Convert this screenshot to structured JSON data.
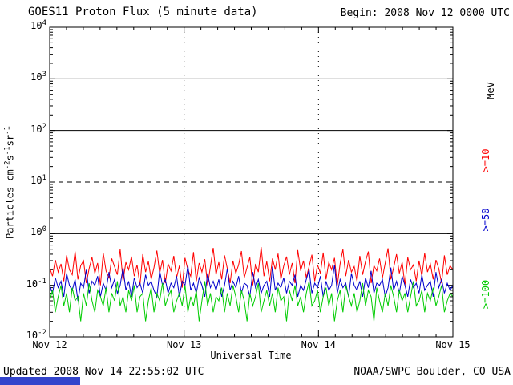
{
  "header": {
    "title": "GOES11 Proton Flux (5 minute data)",
    "begin_label": "Begin: 2008 Nov 12 0000 UTC"
  },
  "footer": {
    "updated": "Updated 2008 Nov 14 22:55:02 UTC",
    "source": "NOAA/SWPC Boulder, CO USA"
  },
  "decor": {
    "bottom_bar_color": "#3344cc"
  },
  "chart_data": {
    "type": "line",
    "title": "GOES11 Proton Flux (5 minute data)",
    "xlabel": "Universal Time",
    "ylabel": "Particles cm-2s-1sr-1",
    "ylabel_parts": [
      {
        "t": "Particles cm"
      },
      {
        "sup": "-2"
      },
      {
        "t": "s"
      },
      {
        "sup": "-1"
      },
      {
        "t": "sr"
      },
      {
        "sup": "-1"
      }
    ],
    "y_scale": "log",
    "ylim": [
      0.01,
      10000
    ],
    "y_tick_exponents": [
      4,
      3,
      2,
      1,
      0,
      -1,
      -2
    ],
    "x_range_hours": 72,
    "x_ticks": [
      {
        "hour": 0,
        "label": "Nov 12"
      },
      {
        "hour": 24,
        "label": "Nov 13"
      },
      {
        "hour": 48,
        "label": "Nov 14"
      },
      {
        "hour": 72,
        "label": "Nov 15"
      }
    ],
    "grid": {
      "solid_hlines": [
        1000,
        100,
        1
      ],
      "dashed_hlines": [
        10
      ],
      "dotted_vlines_hours": [
        24,
        48
      ]
    },
    "legend_position": "right-rotated",
    "right_labels": [
      {
        "text": "MeV",
        "color": "#000000"
      },
      {
        "text": ">=10",
        "color": "#ff0000"
      },
      {
        "text": ">=50",
        "color": "#0000cc"
      },
      {
        "text": ">=100",
        "color": "#00cc00"
      }
    ],
    "series": [
      {
        "name": ">=10 MeV",
        "color": "#ff0000",
        "values": [
          0.22,
          0.15,
          0.31,
          0.18,
          0.26,
          0.12,
          0.38,
          0.2,
          0.16,
          0.45,
          0.13,
          0.24,
          0.3,
          0.11,
          0.21,
          0.35,
          0.17,
          0.27,
          0.1,
          0.42,
          0.19,
          0.14,
          0.33,
          0.23,
          0.16,
          0.5,
          0.12,
          0.28,
          0.2,
          0.36,
          0.15,
          0.25,
          0.1,
          0.4,
          0.18,
          0.29,
          0.13,
          0.22,
          0.47,
          0.17,
          0.31,
          0.11,
          0.26,
          0.19,
          0.37,
          0.14,
          0.24,
          0.09,
          0.34,
          0.2,
          0.15,
          0.44,
          0.12,
          0.27,
          0.18,
          0.32,
          0.1,
          0.23,
          0.53,
          0.16,
          0.28,
          0.13,
          0.38,
          0.21,
          0.11,
          0.3,
          0.17,
          0.25,
          0.46,
          0.14,
          0.22,
          0.35,
          0.1,
          0.26,
          0.18,
          0.55,
          0.15,
          0.29,
          0.12,
          0.33,
          0.2,
          0.41,
          0.13,
          0.24,
          0.36,
          0.16,
          0.27,
          0.11,
          0.48,
          0.19,
          0.3,
          0.14,
          0.23,
          0.39,
          0.12,
          0.25,
          0.17,
          0.43,
          0.13,
          0.28,
          0.2,
          0.34,
          0.1,
          0.26,
          0.5,
          0.15,
          0.31,
          0.18,
          0.23,
          0.12,
          0.37,
          0.16,
          0.29,
          0.45,
          0.11,
          0.24,
          0.19,
          0.33,
          0.14,
          0.27,
          0.52,
          0.13,
          0.22,
          0.4,
          0.17,
          0.28,
          0.1,
          0.35,
          0.2,
          0.25,
          0.12,
          0.3,
          0.15,
          0.42,
          0.18,
          0.26,
          0.13,
          0.31,
          0.21,
          0.11,
          0.38,
          0.16,
          0.24,
          0.2
        ]
      },
      {
        "name": ">=50 MeV",
        "color": "#0000cc",
        "values": [
          0.1,
          0.07,
          0.14,
          0.09,
          0.12,
          0.06,
          0.17,
          0.1,
          0.08,
          0.13,
          0.05,
          0.11,
          0.09,
          0.2,
          0.07,
          0.12,
          0.1,
          0.15,
          0.06,
          0.11,
          0.08,
          0.18,
          0.09,
          0.13,
          0.07,
          0.1,
          0.22,
          0.08,
          0.12,
          0.06,
          0.14,
          0.09,
          0.11,
          0.07,
          0.16,
          0.1,
          0.12,
          0.08,
          0.06,
          0.19,
          0.1,
          0.13,
          0.07,
          0.11,
          0.09,
          0.15,
          0.06,
          0.12,
          0.1,
          0.24,
          0.08,
          0.11,
          0.07,
          0.14,
          0.1,
          0.06,
          0.17,
          0.09,
          0.12,
          0.08,
          0.13,
          0.06,
          0.1,
          0.21,
          0.08,
          0.12,
          0.09,
          0.15,
          0.07,
          0.11,
          0.1,
          0.06,
          0.18,
          0.09,
          0.13,
          0.07,
          0.1,
          0.12,
          0.06,
          0.23,
          0.08,
          0.11,
          0.09,
          0.14,
          0.07,
          0.12,
          0.1,
          0.16,
          0.06,
          0.1,
          0.08,
          0.13,
          0.2,
          0.07,
          0.11,
          0.09,
          0.15,
          0.06,
          0.12,
          0.08,
          0.1,
          0.25,
          0.07,
          0.13,
          0.09,
          0.11,
          0.06,
          0.17,
          0.1,
          0.08,
          0.12,
          0.06,
          0.14,
          0.09,
          0.19,
          0.07,
          0.11,
          0.1,
          0.13,
          0.06,
          0.09,
          0.22,
          0.08,
          0.12,
          0.07,
          0.15,
          0.1,
          0.06,
          0.13,
          0.09,
          0.11,
          0.07,
          0.16,
          0.08,
          0.1,
          0.12,
          0.06,
          0.18,
          0.09,
          0.13,
          0.07,
          0.11,
          0.08,
          0.1
        ]
      },
      {
        "name": ">=100 MeV",
        "color": "#00cc00",
        "values": [
          0.05,
          0.08,
          0.03,
          0.06,
          0.1,
          0.04,
          0.07,
          0.03,
          0.09,
          0.05,
          0.06,
          0.02,
          0.07,
          0.04,
          0.11,
          0.05,
          0.03,
          0.08,
          0.06,
          0.04,
          0.09,
          0.03,
          0.07,
          0.05,
          0.12,
          0.04,
          0.06,
          0.03,
          0.08,
          0.05,
          0.1,
          0.03,
          0.06,
          0.07,
          0.02,
          0.05,
          0.09,
          0.03,
          0.07,
          0.05,
          0.11,
          0.04,
          0.06,
          0.08,
          0.03,
          0.05,
          0.07,
          0.04,
          0.1,
          0.03,
          0.06,
          0.04,
          0.08,
          0.02,
          0.05,
          0.12,
          0.04,
          0.07,
          0.03,
          0.06,
          0.05,
          0.09,
          0.03,
          0.07,
          0.04,
          0.1,
          0.06,
          0.03,
          0.08,
          0.05,
          0.02,
          0.07,
          0.04,
          0.06,
          0.11,
          0.03,
          0.05,
          0.08,
          0.04,
          0.07,
          0.03,
          0.09,
          0.05,
          0.06,
          0.02,
          0.08,
          0.05,
          0.1,
          0.04,
          0.06,
          0.03,
          0.07,
          0.12,
          0.04,
          0.05,
          0.08,
          0.03,
          0.06,
          0.09,
          0.04,
          0.07,
          0.02,
          0.05,
          0.08,
          0.03,
          0.1,
          0.06,
          0.04,
          0.07,
          0.03,
          0.05,
          0.11,
          0.04,
          0.08,
          0.06,
          0.02,
          0.09,
          0.05,
          0.03,
          0.07,
          0.04,
          0.1,
          0.06,
          0.03,
          0.08,
          0.05,
          0.07,
          0.03,
          0.06,
          0.12,
          0.04,
          0.05,
          0.08,
          0.03,
          0.07,
          0.05,
          0.09,
          0.04,
          0.06,
          0.1,
          0.03,
          0.05,
          0.07,
          0.06
        ]
      }
    ]
  }
}
